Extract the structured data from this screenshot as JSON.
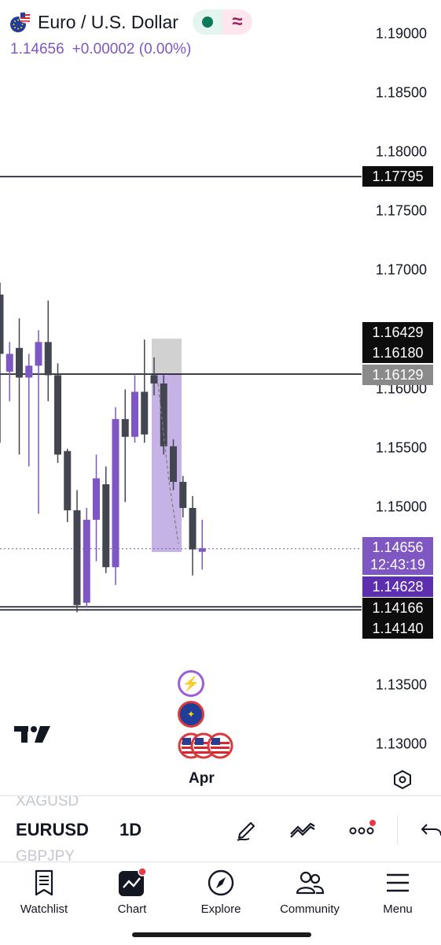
{
  "header": {
    "title": "Euro / U.S. Dollar",
    "last_price": "1.14656",
    "change": "+0.00002 (0.00%)",
    "flag_icon": "eur-usd-flag-icon",
    "market_status_icon": "market-open-dot-icon",
    "delay_icon": "approx-wave-icon"
  },
  "price_axis": {
    "ticks": [
      "1.19000",
      "1.18500",
      "1.18000",
      "1.17500",
      "1.17000",
      "1.16000",
      "1.15500",
      "1.15000",
      "1.13500",
      "1.13000"
    ],
    "labels": {
      "h_line_upper": "1.17795",
      "label_a": "1.16429",
      "label_b": "1.16180",
      "label_c": "1.16129",
      "current_price": "1.14656",
      "countdown": "12:43:19",
      "label_d": "1.14628",
      "h_line_lower": "1.14166",
      "label_e": "1.14140"
    }
  },
  "chart_data": {
    "type": "candlestick",
    "symbol": "EURUSD",
    "timeframe": "1D",
    "ylim": [
      1.1265,
      1.1915
    ],
    "y_ticks": [
      1.19,
      1.185,
      1.18,
      1.175,
      1.17,
      1.16,
      1.155,
      1.15,
      1.135,
      1.13
    ],
    "x_tick_labels": [
      "Apr"
    ],
    "candles": [
      {
        "open": 1.168,
        "high": 1.169,
        "close": 1.163,
        "low": 1.1555,
        "color": "dark"
      },
      {
        "open": 1.1615,
        "high": 1.164,
        "close": 1.163,
        "low": 1.159,
        "color": "purple"
      },
      {
        "open": 1.1635,
        "high": 1.166,
        "close": 1.161,
        "low": 1.1545,
        "color": "dark"
      },
      {
        "open": 1.161,
        "high": 1.163,
        "close": 1.162,
        "low": 1.1535,
        "color": "purple"
      },
      {
        "open": 1.162,
        "high": 1.165,
        "close": 1.164,
        "low": 1.1495,
        "color": "purple"
      },
      {
        "open": 1.164,
        "high": 1.1675,
        "close": 1.1612,
        "low": 1.159,
        "color": "dark"
      },
      {
        "open": 1.1612,
        "high": 1.1622,
        "close": 1.1545,
        "low": 1.1538,
        "color": "dark"
      },
      {
        "open": 1.1548,
        "high": 1.155,
        "close": 1.1498,
        "low": 1.1488,
        "color": "dark"
      },
      {
        "open": 1.1498,
        "high": 1.1515,
        "close": 1.1418,
        "low": 1.1412,
        "color": "dark"
      },
      {
        "open": 1.142,
        "high": 1.15,
        "close": 1.149,
        "low": 1.1416,
        "color": "purple"
      },
      {
        "open": 1.149,
        "high": 1.1545,
        "close": 1.1525,
        "low": 1.1455,
        "color": "purple"
      },
      {
        "open": 1.152,
        "high": 1.1535,
        "close": 1.145,
        "low": 1.1445,
        "color": "dark"
      },
      {
        "open": 1.145,
        "high": 1.1585,
        "close": 1.1575,
        "low": 1.1435,
        "color": "purple"
      },
      {
        "open": 1.1575,
        "high": 1.16,
        "close": 1.156,
        "low": 1.1505,
        "color": "dark"
      },
      {
        "open": 1.156,
        "high": 1.1612,
        "close": 1.1598,
        "low": 1.1555,
        "color": "purple"
      },
      {
        "open": 1.1598,
        "high": 1.1642,
        "close": 1.1562,
        "low": 1.1555,
        "color": "dark"
      },
      {
        "open": 1.1612,
        "high": 1.1627,
        "close": 1.1605,
        "low": 1.1595,
        "color": "dark"
      },
      {
        "open": 1.1605,
        "high": 1.1612,
        "close": 1.1552,
        "low": 1.1545,
        "color": "dark"
      },
      {
        "open": 1.1552,
        "high": 1.1558,
        "close": 1.1522,
        "low": 1.1515,
        "color": "dark"
      },
      {
        "open": 1.1522,
        "high": 1.1527,
        "close": 1.15,
        "low": 1.1492,
        "color": "dark"
      },
      {
        "open": 1.15,
        "high": 1.151,
        "close": 1.1465,
        "low": 1.1443,
        "color": "dark"
      },
      {
        "open": 1.1463,
        "high": 1.149,
        "close": 1.1466,
        "low": 1.1448,
        "color": "purple"
      }
    ],
    "horizontal_lines": [
      1.17795,
      1.16129,
      1.14166,
      1.1414
    ],
    "last_price_line": 1.14656,
    "position_box": {
      "entry": 1.16129,
      "stop": 1.16429,
      "target": 1.14628
    }
  },
  "chart_bottom": {
    "month": "Apr",
    "settings_icon": "hexagon-settings-icon",
    "logo_icon": "tradingview-logo-icon",
    "event_icons": [
      "lightning-event-icon",
      "eu-flag-event-icon",
      "us-flag-event-icon"
    ]
  },
  "symbol_bar": {
    "prev_symbol": "XAGUSD",
    "symbol": "EURUSD",
    "timeframe": "1D",
    "next_symbol": "GBPJPY",
    "tools": [
      "pencil-draw-icon",
      "trend-indicator-icon",
      "more-dots-icon",
      "undo-arrow-icon"
    ]
  },
  "nav": {
    "items": [
      {
        "label": "Watchlist",
        "icon": "watchlist-icon"
      },
      {
        "label": "Chart",
        "icon": "chart-icon"
      },
      {
        "label": "Explore",
        "icon": "compass-icon"
      },
      {
        "label": "Community",
        "icon": "community-icon"
      },
      {
        "label": "Menu",
        "icon": "hamburger-menu-icon"
      }
    ]
  },
  "colors": {
    "bull": "#7e57c2",
    "bear": "#434651",
    "accent": "#7e57c2",
    "box_profit": "#c5b3e6",
    "box_loss": "#d1d1d1",
    "badge": "#f23645"
  }
}
